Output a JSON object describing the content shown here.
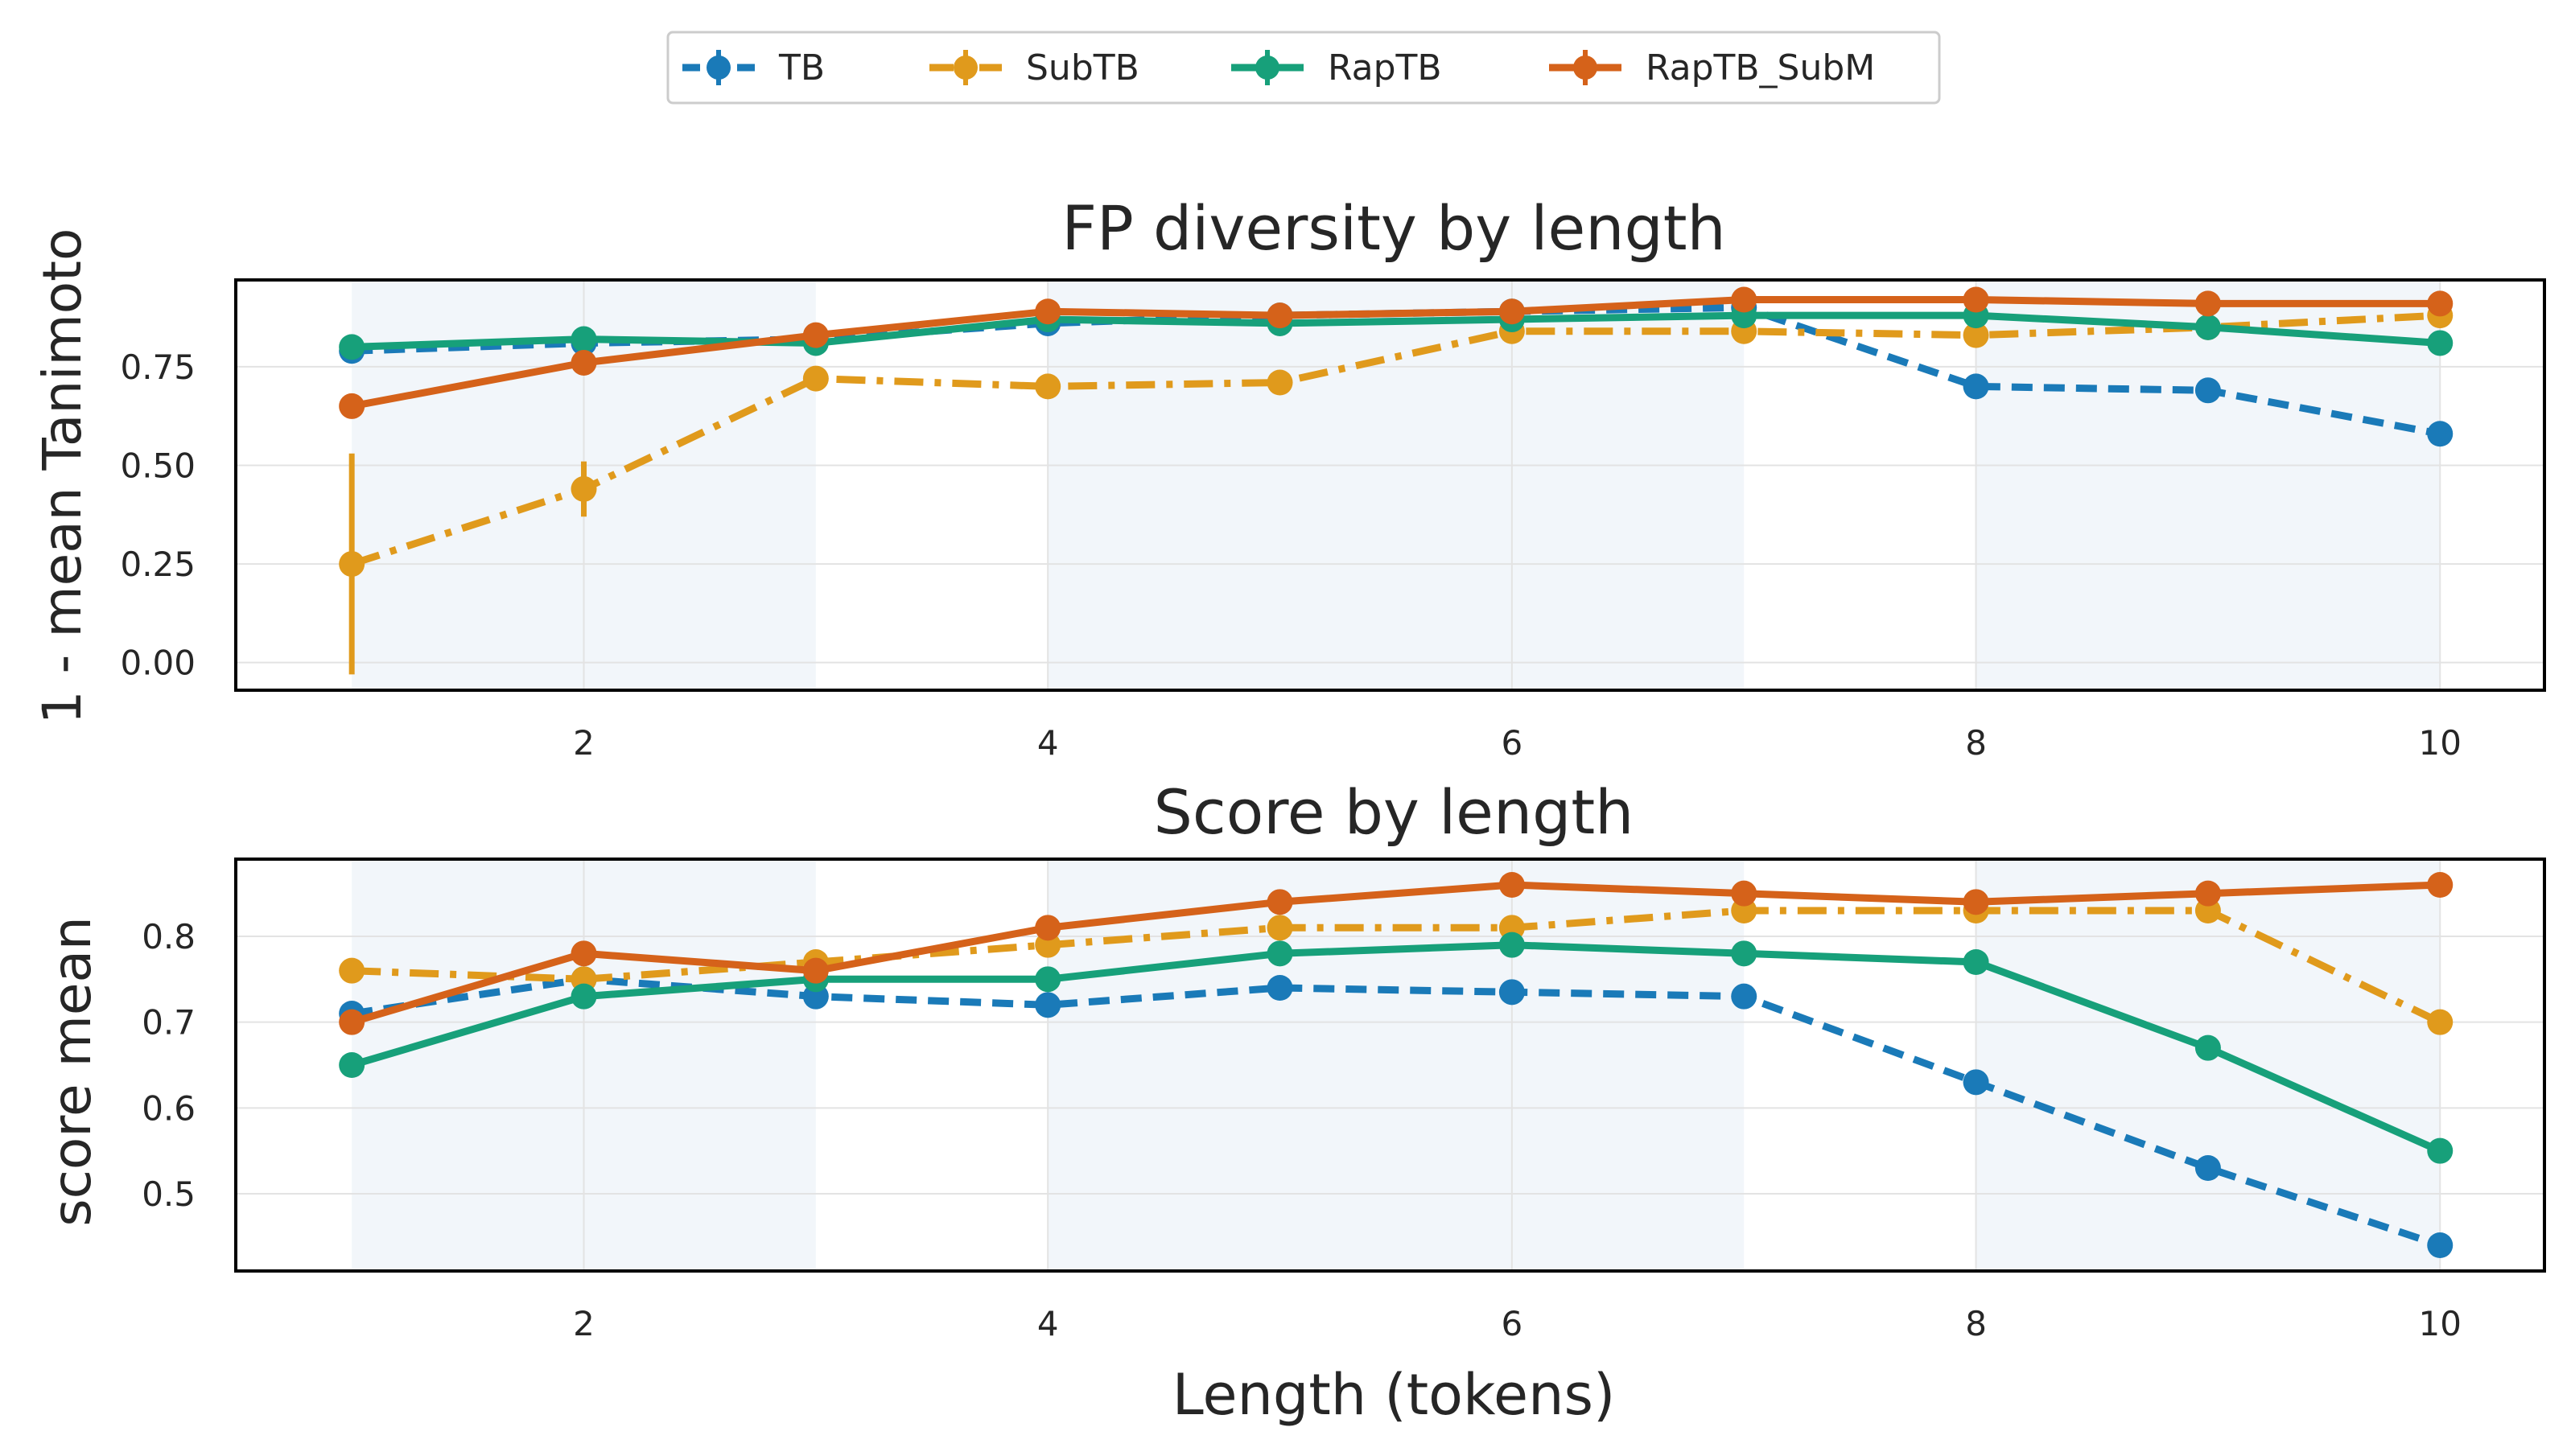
{
  "legend": [
    {
      "name": "TB",
      "color": "#1a7ab8",
      "dash": "dashed"
    },
    {
      "name": "SubTB",
      "color": "#e09a1c",
      "dash": "dashdot"
    },
    {
      "name": "RapTB",
      "color": "#17a07a",
      "dash": "solid"
    },
    {
      "name": "RapTB_SubM",
      "color": "#d5621a",
      "dash": "solid"
    }
  ],
  "chart_data": [
    {
      "type": "line",
      "title": "FP diversity by length",
      "xlabel": "",
      "ylabel": "1 - mean Tanimoto",
      "xlim": [
        0.5,
        10.45
      ],
      "ylim": [
        -0.07,
        0.97
      ],
      "xticks": [
        2,
        4,
        6,
        8,
        10
      ],
      "yticks": [
        0.0,
        0.25,
        0.5,
        0.75
      ],
      "ytick_labels": [
        "0.00",
        "0.25",
        "0.50",
        "0.75"
      ],
      "shaded_bands": [
        [
          1,
          3
        ],
        [
          4,
          7
        ],
        [
          8,
          10
        ]
      ],
      "grid": true,
      "x": [
        1,
        2,
        3,
        4,
        5,
        6,
        7,
        8,
        9,
        10
      ],
      "series": [
        {
          "name": "TB",
          "values": [
            0.79,
            0.81,
            0.82,
            0.86,
            0.88,
            0.89,
            0.9,
            0.7,
            0.69,
            0.58
          ],
          "errors": [
            0.02,
            0.01,
            0.01,
            0.015,
            0.01,
            0.01,
            0.01,
            0.03,
            0.01,
            0.01
          ]
        },
        {
          "name": "SubTB",
          "values": [
            0.25,
            0.44,
            0.72,
            0.7,
            0.71,
            0.84,
            0.84,
            0.83,
            0.85,
            0.88
          ],
          "errors": [
            0.28,
            0.07,
            0.01,
            0.01,
            0.015,
            0.01,
            0.01,
            0.01,
            0.01,
            0.01
          ]
        },
        {
          "name": "RapTB",
          "values": [
            0.8,
            0.82,
            0.81,
            0.87,
            0.86,
            0.87,
            0.88,
            0.88,
            0.85,
            0.81
          ],
          "errors": [
            0.01,
            0.01,
            0.01,
            0.01,
            0.01,
            0.01,
            0.01,
            0.01,
            0.01,
            0.01
          ]
        },
        {
          "name": "RapTB_SubM",
          "values": [
            0.65,
            0.76,
            0.83,
            0.89,
            0.88,
            0.89,
            0.92,
            0.92,
            0.91,
            0.91
          ],
          "errors": [
            0.01,
            0.01,
            0.01,
            0.01,
            0.01,
            0.01,
            0.01,
            0.01,
            0.01,
            0.01
          ]
        }
      ]
    },
    {
      "type": "line",
      "title": "Score by length",
      "xlabel": "Length (tokens)",
      "ylabel": "score mean",
      "xlim": [
        0.5,
        10.45
      ],
      "ylim": [
        0.41,
        0.89
      ],
      "xticks": [
        2,
        4,
        6,
        8,
        10
      ],
      "yticks": [
        0.5,
        0.6,
        0.7,
        0.8
      ],
      "ytick_labels": [
        "0.5",
        "0.6",
        "0.7",
        "0.8"
      ],
      "shaded_bands": [
        [
          1,
          3
        ],
        [
          4,
          7
        ],
        [
          8,
          10
        ]
      ],
      "grid": true,
      "x": [
        1,
        2,
        3,
        4,
        5,
        6,
        7,
        8,
        9,
        10
      ],
      "series": [
        {
          "name": "TB",
          "values": [
            0.71,
            0.75,
            0.73,
            0.72,
            0.74,
            0.735,
            0.73,
            0.63,
            0.53,
            0.44
          ],
          "errors": [
            0.005,
            0.005,
            0.005,
            0.005,
            0.005,
            0.013,
            0.005,
            0.005,
            0.005,
            0.005
          ]
        },
        {
          "name": "SubTB",
          "values": [
            0.76,
            0.75,
            0.77,
            0.79,
            0.81,
            0.81,
            0.83,
            0.83,
            0.83,
            0.7
          ],
          "errors": [
            0.005,
            0.005,
            0.005,
            0.005,
            0.005,
            0.005,
            0.005,
            0.005,
            0.005,
            0.005
          ]
        },
        {
          "name": "RapTB",
          "values": [
            0.65,
            0.73,
            0.75,
            0.75,
            0.78,
            0.79,
            0.78,
            0.77,
            0.67,
            0.55
          ],
          "errors": [
            0.005,
            0.005,
            0.005,
            0.005,
            0.005,
            0.005,
            0.005,
            0.005,
            0.005,
            0.005
          ]
        },
        {
          "name": "RapTB_SubM",
          "values": [
            0.7,
            0.78,
            0.76,
            0.81,
            0.84,
            0.86,
            0.85,
            0.84,
            0.85,
            0.86
          ],
          "errors": [
            0.005,
            0.005,
            0.005,
            0.005,
            0.005,
            0.005,
            0.005,
            0.005,
            0.005,
            0.005
          ]
        }
      ]
    }
  ]
}
